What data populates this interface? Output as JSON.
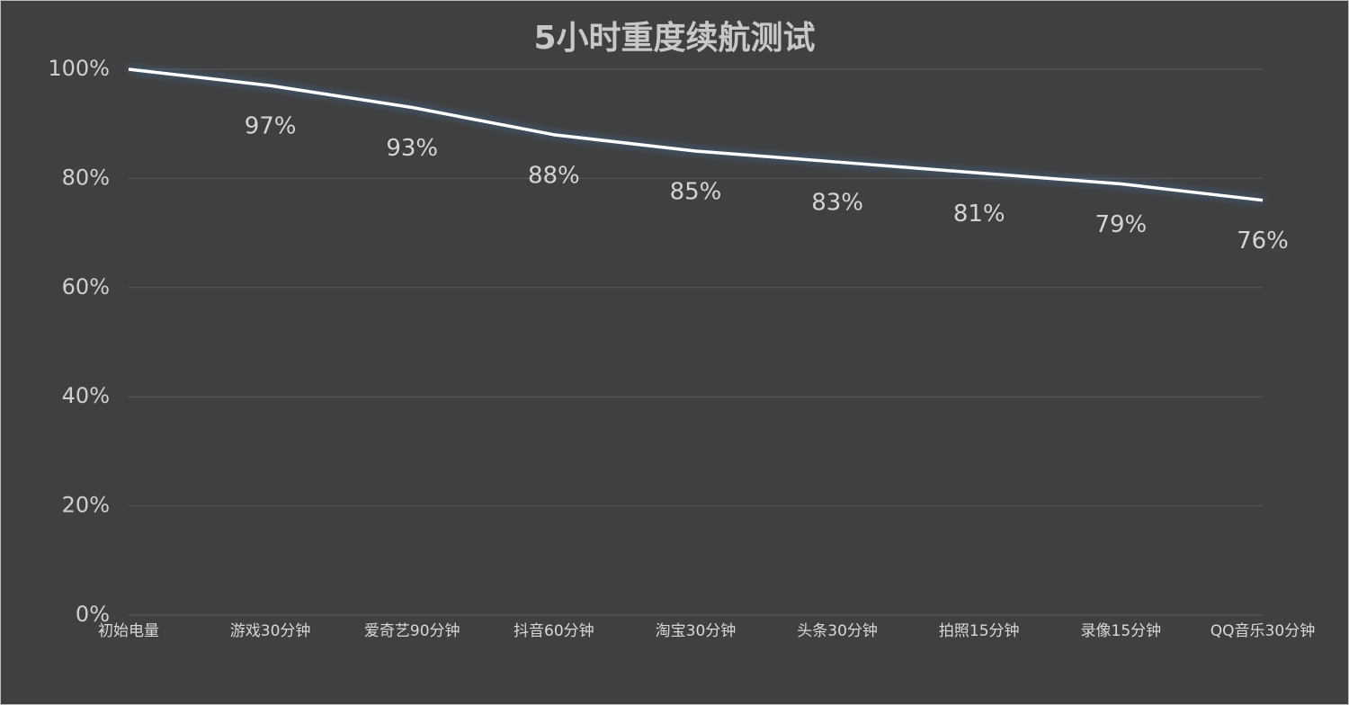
{
  "chart_data": {
    "type": "line",
    "title": "5小时重度续航测试",
    "categories": [
      "初始电量",
      "游戏30分钟",
      "爱奇艺90分钟",
      "抖音60分钟",
      "淘宝30分钟",
      "头条30分钟",
      "拍照15分钟",
      "录像15分钟",
      "QQ音乐30分钟"
    ],
    "series": [
      {
        "color": "#ffffff",
        "values": [
          100,
          97,
          93,
          88,
          85,
          83,
          81,
          79,
          76
        ],
        "value_labels": [
          null,
          "97%",
          "93%",
          "88%",
          "85%",
          "83%",
          "81%",
          "79%",
          "76%"
        ]
      }
    ],
    "ylim": [
      0,
      100
    ],
    "yticks": [
      {
        "value": 0,
        "label": "0%"
      },
      {
        "value": 20,
        "label": "20%"
      },
      {
        "value": 40,
        "label": "40%"
      },
      {
        "value": 60,
        "label": "60%"
      },
      {
        "value": 80,
        "label": "80%"
      },
      {
        "value": 100,
        "label": "100%"
      }
    ],
    "grid": true
  }
}
